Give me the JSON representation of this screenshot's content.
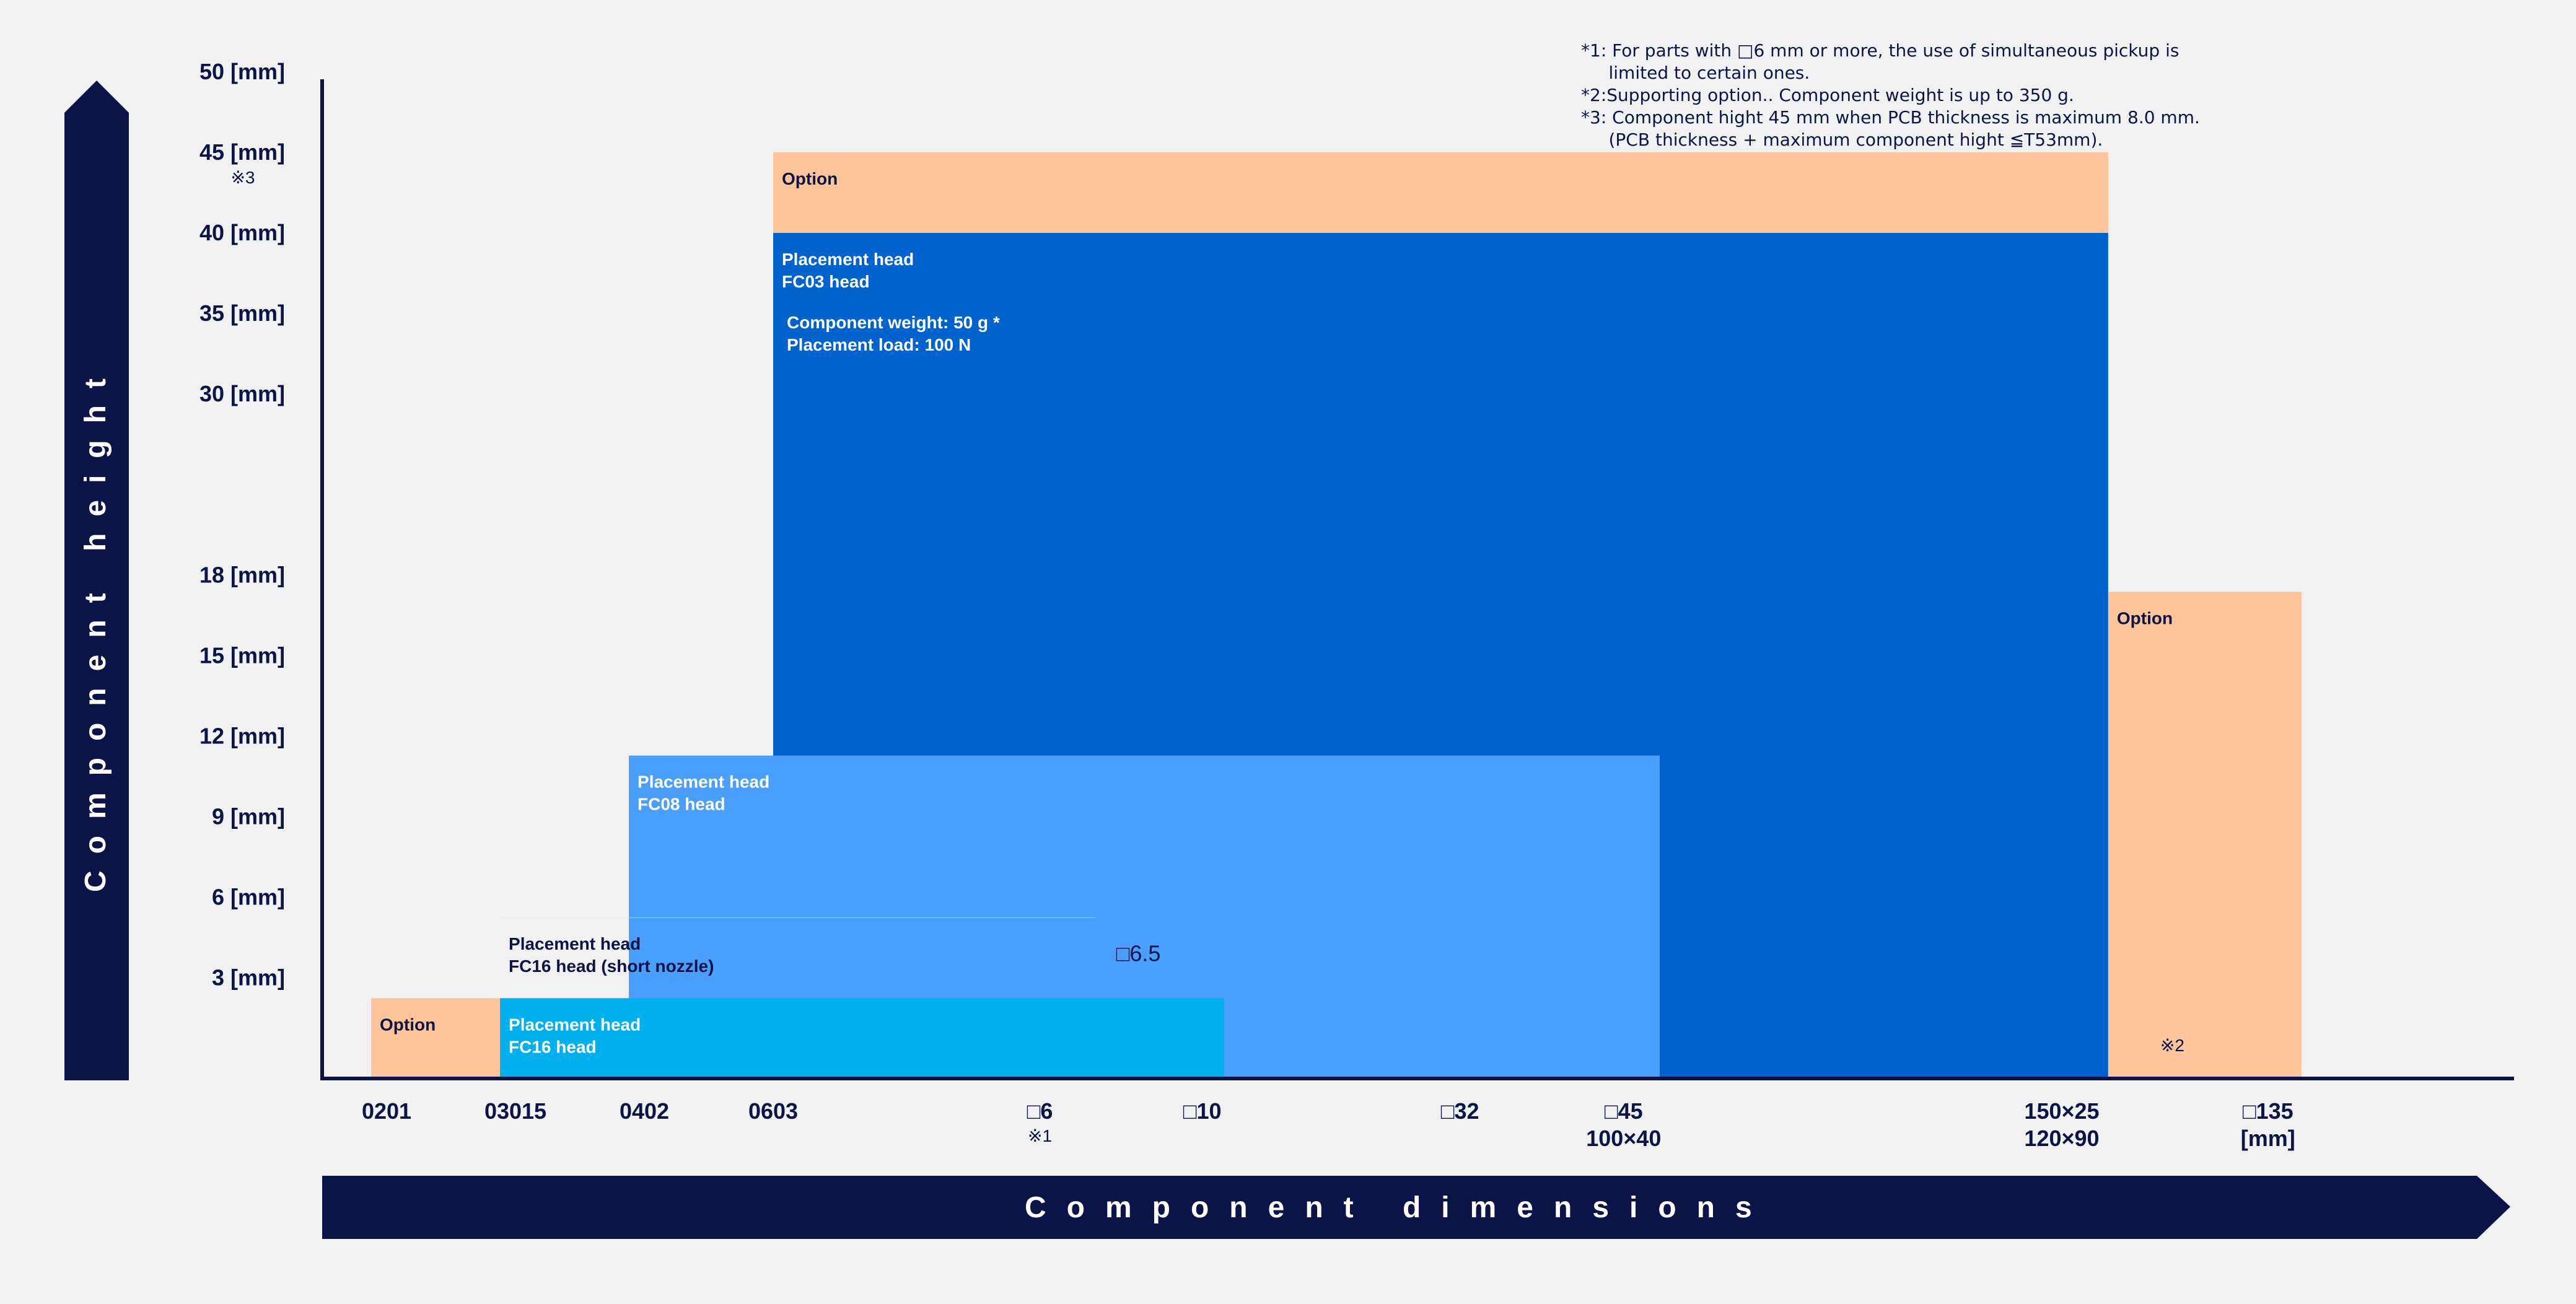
{
  "chart_data": {
    "type": "area",
    "title": "",
    "xlabel": "Component dimensions",
    "ylabel": "Component height",
    "xlim": [
      0,
      17
    ],
    "ylim": [
      0,
      50
    ],
    "categories": [
      "0201",
      "03015",
      "0402",
      "0603",
      "□6",
      "□10",
      "□32",
      "□45",
      "150×25",
      "□135"
    ],
    "x_ticks": [
      {
        "label": "0201",
        "sub": "",
        "x": 0.5
      },
      {
        "label": "03015",
        "sub": "",
        "x": 1.5
      },
      {
        "label": "0402",
        "sub": "",
        "x": 2.5
      },
      {
        "label": "0603",
        "sub": "",
        "x": 3.5
      },
      {
        "label": "□6",
        "sub": "※1",
        "x": 5.57
      },
      {
        "label": "□10",
        "sub": "",
        "x": 6.83
      },
      {
        "label": "□32",
        "sub": "",
        "x": 8.83
      },
      {
        "label": "□45",
        "sub": "100×40",
        "x": 10.1
      },
      {
        "label": "150×25",
        "sub": "120×90",
        "x": 13.5
      },
      {
        "label": "□135",
        "sub": "[mm]",
        "x": 15.1
      }
    ],
    "y_ticks": [
      {
        "label": "3 [mm]",
        "y": 5
      },
      {
        "label": "6 [mm]",
        "y": 9
      },
      {
        "label": "9 [mm]",
        "y": 13
      },
      {
        "label": "12 [mm]",
        "y": 17
      },
      {
        "label": "15 [mm]",
        "y": 21
      },
      {
        "label": "18 [mm]",
        "y": 25
      },
      {
        "label": "30 [mm]",
        "y": 34
      },
      {
        "label": "35 [mm]",
        "y": 38
      },
      {
        "label": "40 [mm]",
        "y": 42
      },
      {
        "label": "45 [mm]",
        "y": 46,
        "sub": "※3"
      },
      {
        "label": "50 [mm]",
        "y": 50
      }
    ],
    "regions": [
      {
        "name": "fc03-option",
        "lines": [
          "Option"
        ],
        "x0": 3.5,
        "x1": 13.86,
        "y0": 41.99,
        "y1": 46,
        "fill": "#fec49a",
        "text_color": "#0b1447"
      },
      {
        "name": "fc03",
        "lines": [
          "Placement head",
          "FC03 head"
        ],
        "detail": [
          "Component weight: 50 g *",
          "Placement load: 100 N"
        ],
        "x0": 3.5,
        "x1": 13.86,
        "y0": 0,
        "y1": 42,
        "fill": "#0062cc",
        "text_color": "#ffffff"
      },
      {
        "name": "fc03-side-option",
        "lines": [
          "Option"
        ],
        "note": "※2",
        "x0": 13.86,
        "x1": 15.36,
        "y0": 0,
        "y1": 24.17,
        "fill": "#fec49a",
        "text_color": "#0b1447"
      },
      {
        "name": "fc08",
        "lines": [
          "Placement head",
          "FC08 head"
        ],
        "x0": 2.38,
        "x1": 10.38,
        "y0": 0,
        "y1": 16.04,
        "fill": "#4a9ffc",
        "text_color": "#ffffff"
      },
      {
        "name": "fc16-short",
        "lines": [
          "Placement head",
          "FC16 head (short nozzle)"
        ],
        "x0": 1.38,
        "x1": 6.0,
        "y0": 7.98,
        "y1": 8,
        "fill": "#c6f0fd",
        "text_color": "#0b1447"
      },
      {
        "name": "fc16",
        "lines": [
          "Placement head",
          "FC16 head"
        ],
        "x0": 1.38,
        "x1": 7.0,
        "y0": 0,
        "y1": 3.99,
        "fill": "#00b0ed",
        "text_color": "#ffffff"
      },
      {
        "name": "fc16-option",
        "lines": [
          "Option"
        ],
        "x0": 0.38,
        "x1": 1.38,
        "y0": 0,
        "y1": 3.99,
        "fill": "#fec49a",
        "text_color": "#0b1447"
      }
    ],
    "annotations": [
      {
        "text": "□6.5",
        "x": 6.2,
        "y": 6.2
      }
    ]
  },
  "notes": [
    "*1: For parts with □6 mm or more, the use of simultaneous pickup is",
    "     limited to certain ones.",
    "*2:Supporting option.. Component weight is up to 350 g.",
    "*3: Component hight 45 mm when PCB thickness is maximum 8.0 mm.",
    "     (PCB thickness + maximum component hight ≦T53mm)."
  ],
  "colors": {
    "navy": "#0b1447",
    "background": "#f1f1f1"
  }
}
